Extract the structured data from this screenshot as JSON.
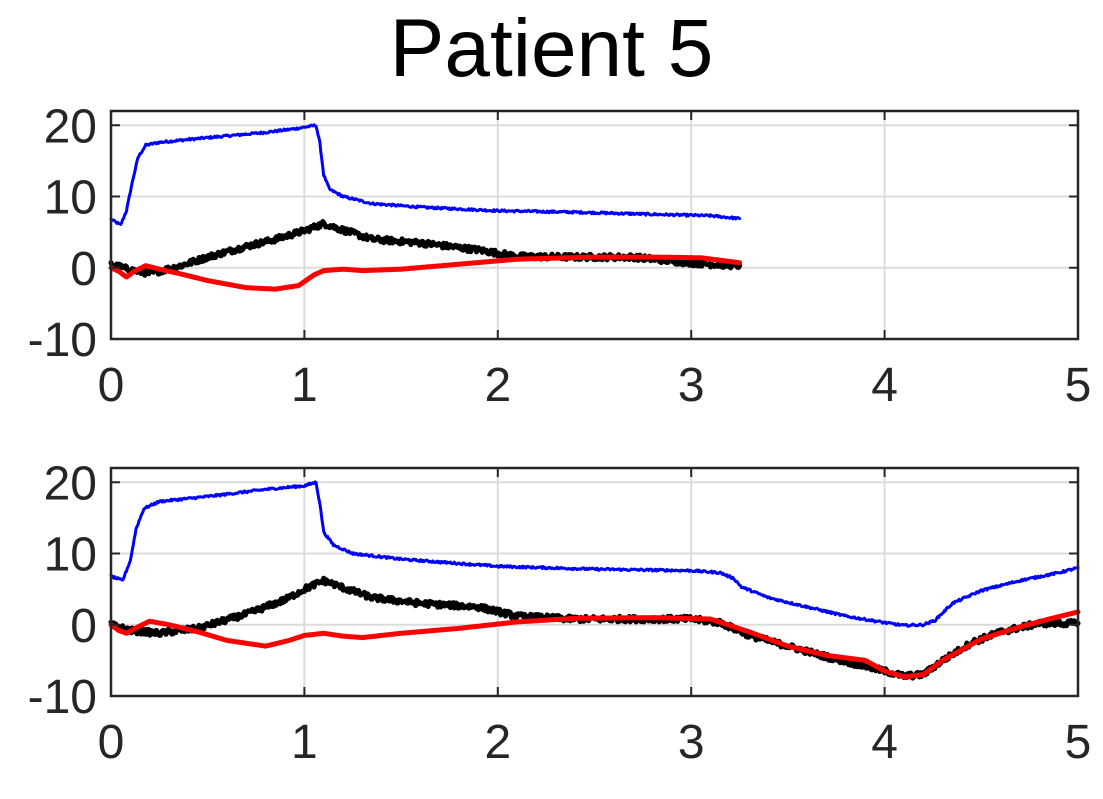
{
  "title": "Patient 5",
  "chart_data": [
    {
      "type": "line",
      "xlim": [
        0,
        5
      ],
      "ylim": [
        -10,
        22
      ],
      "xticks": [
        0,
        1,
        2,
        3,
        4,
        5
      ],
      "yticks": [
        -10,
        0,
        10,
        20
      ],
      "grid": true,
      "series": [
        {
          "color": "#0000ff",
          "width": 3,
          "noise": 0.15,
          "points": [
            [
              0,
              6.8
            ],
            [
              0.05,
              6.0
            ],
            [
              0.08,
              8
            ],
            [
              0.11,
              12
            ],
            [
              0.14,
              15.5
            ],
            [
              0.18,
              17.2
            ],
            [
              0.25,
              17.6
            ],
            [
              0.4,
              18.0
            ],
            [
              0.6,
              18.5
            ],
            [
              0.8,
              19.0
            ],
            [
              0.95,
              19.5
            ],
            [
              1.06,
              20.0
            ],
            [
              1.08,
              17.5
            ],
            [
              1.1,
              13
            ],
            [
              1.13,
              11
            ],
            [
              1.2,
              10
            ],
            [
              1.35,
              9.0
            ],
            [
              1.6,
              8.5
            ],
            [
              2.0,
              8.0
            ],
            [
              2.4,
              7.8
            ],
            [
              2.8,
              7.5
            ],
            [
              3.1,
              7.3
            ],
            [
              3.25,
              6.9
            ]
          ]
        },
        {
          "color": "#000000",
          "width": 5,
          "noise": 0.4,
          "points": [
            [
              0,
              0.5
            ],
            [
              0.1,
              -0.3
            ],
            [
              0.2,
              -0.8
            ],
            [
              0.35,
              0.2
            ],
            [
              0.5,
              1.5
            ],
            [
              0.7,
              3.0
            ],
            [
              0.85,
              4.0
            ],
            [
              1.0,
              5.2
            ],
            [
              1.1,
              6.2
            ],
            [
              1.2,
              5.3
            ],
            [
              1.35,
              4.0
            ],
            [
              1.6,
              3.5
            ],
            [
              1.9,
              2.5
            ],
            [
              2.1,
              1.6
            ],
            [
              2.4,
              1.5
            ],
            [
              2.7,
              1.5
            ],
            [
              2.95,
              0.8
            ],
            [
              3.1,
              0.5
            ],
            [
              3.25,
              0.3
            ]
          ]
        },
        {
          "color": "#ff0000",
          "width": 5,
          "noise": 0,
          "points": [
            [
              0,
              0
            ],
            [
              0.04,
              -0.5
            ],
            [
              0.08,
              -1.3
            ],
            [
              0.12,
              -0.5
            ],
            [
              0.18,
              0.3
            ],
            [
              0.25,
              -0.2
            ],
            [
              0.35,
              -0.8
            ],
            [
              0.5,
              -1.8
            ],
            [
              0.7,
              -2.8
            ],
            [
              0.85,
              -3.0
            ],
            [
              0.97,
              -2.5
            ],
            [
              1.05,
              -1.0
            ],
            [
              1.1,
              -0.4
            ],
            [
              1.2,
              -0.2
            ],
            [
              1.3,
              -0.4
            ],
            [
              1.5,
              -0.2
            ],
            [
              1.8,
              0.5
            ],
            [
              2.1,
              1.2
            ],
            [
              2.5,
              1.5
            ],
            [
              2.8,
              1.5
            ],
            [
              3.05,
              1.4
            ],
            [
              3.25,
              0.7
            ]
          ]
        }
      ]
    },
    {
      "type": "line",
      "xlim": [
        0,
        5
      ],
      "ylim": [
        -10,
        22
      ],
      "xticks": [
        0,
        1,
        2,
        3,
        4,
        5
      ],
      "yticks": [
        -10,
        0,
        10,
        20
      ],
      "grid": true,
      "series": [
        {
          "color": "#0000ff",
          "width": 3,
          "noise": 0.15,
          "points": [
            [
              0,
              6.8
            ],
            [
              0.06,
              6.2
            ],
            [
              0.1,
              9
            ],
            [
              0.13,
              13.5
            ],
            [
              0.17,
              16.3
            ],
            [
              0.25,
              17.3
            ],
            [
              0.5,
              18.0
            ],
            [
              0.8,
              19.0
            ],
            [
              1.0,
              19.5
            ],
            [
              1.06,
              20.0
            ],
            [
              1.08,
              17
            ],
            [
              1.1,
              13
            ],
            [
              1.15,
              11.2
            ],
            [
              1.25,
              10
            ],
            [
              1.5,
              9.2
            ],
            [
              2.0,
              8.2
            ],
            [
              2.5,
              7.8
            ],
            [
              3.0,
              7.6
            ],
            [
              3.15,
              7.3
            ],
            [
              3.22,
              6.5
            ],
            [
              3.26,
              5.3
            ],
            [
              3.4,
              3.8
            ],
            [
              3.6,
              2.5
            ],
            [
              3.8,
              1.2
            ],
            [
              4.0,
              0.3
            ],
            [
              4.1,
              -0.1
            ],
            [
              4.2,
              0
            ],
            [
              4.26,
              0.6
            ],
            [
              4.35,
              3.0
            ],
            [
              4.5,
              4.8
            ],
            [
              4.7,
              6.2
            ],
            [
              4.9,
              7.3
            ],
            [
              5.0,
              8.0
            ]
          ]
        },
        {
          "color": "#000000",
          "width": 5,
          "noise": 0.4,
          "points": [
            [
              0,
              0
            ],
            [
              0.1,
              -0.8
            ],
            [
              0.25,
              -1.2
            ],
            [
              0.45,
              -0.5
            ],
            [
              0.7,
              1.5
            ],
            [
              0.9,
              3.5
            ],
            [
              1.0,
              5.0
            ],
            [
              1.1,
              6.2
            ],
            [
              1.2,
              5.2
            ],
            [
              1.35,
              3.8
            ],
            [
              1.6,
              3.0
            ],
            [
              1.9,
              2.5
            ],
            [
              2.1,
              1.2
            ],
            [
              2.4,
              0.8
            ],
            [
              2.7,
              0.8
            ],
            [
              3.0,
              0.8
            ],
            [
              3.15,
              0.3
            ],
            [
              3.3,
              -1.5
            ],
            [
              3.5,
              -3.0
            ],
            [
              3.7,
              -4.5
            ],
            [
              3.85,
              -5.5
            ],
            [
              4.0,
              -6.5
            ],
            [
              4.1,
              -7.2
            ],
            [
              4.2,
              -7.0
            ],
            [
              4.3,
              -5.0
            ],
            [
              4.45,
              -2.5
            ],
            [
              4.6,
              -1.0
            ],
            [
              4.8,
              0.2
            ],
            [
              5.0,
              0.2
            ]
          ]
        },
        {
          "color": "#ff0000",
          "width": 5,
          "noise": 0,
          "points": [
            [
              0,
              0
            ],
            [
              0.04,
              -0.8
            ],
            [
              0.08,
              -1.2
            ],
            [
              0.14,
              -0.3
            ],
            [
              0.2,
              0.5
            ],
            [
              0.3,
              0
            ],
            [
              0.45,
              -1.0
            ],
            [
              0.6,
              -2.2
            ],
            [
              0.8,
              -3.0
            ],
            [
              0.92,
              -2.2
            ],
            [
              1.0,
              -1.5
            ],
            [
              1.1,
              -1.2
            ],
            [
              1.2,
              -1.6
            ],
            [
              1.3,
              -1.8
            ],
            [
              1.5,
              -1.2
            ],
            [
              1.8,
              -0.5
            ],
            [
              2.1,
              0.4
            ],
            [
              2.4,
              0.9
            ],
            [
              2.8,
              1.0
            ],
            [
              3.1,
              0.8
            ],
            [
              3.3,
              -1.0
            ],
            [
              3.5,
              -3.0
            ],
            [
              3.7,
              -4.3
            ],
            [
              3.9,
              -5.0
            ],
            [
              4.0,
              -6.5
            ],
            [
              4.1,
              -7.3
            ],
            [
              4.2,
              -7.0
            ],
            [
              4.3,
              -5.0
            ],
            [
              4.5,
              -2.0
            ],
            [
              4.7,
              -0.3
            ],
            [
              4.85,
              0.8
            ],
            [
              5.0,
              1.8
            ]
          ]
        }
      ]
    }
  ]
}
